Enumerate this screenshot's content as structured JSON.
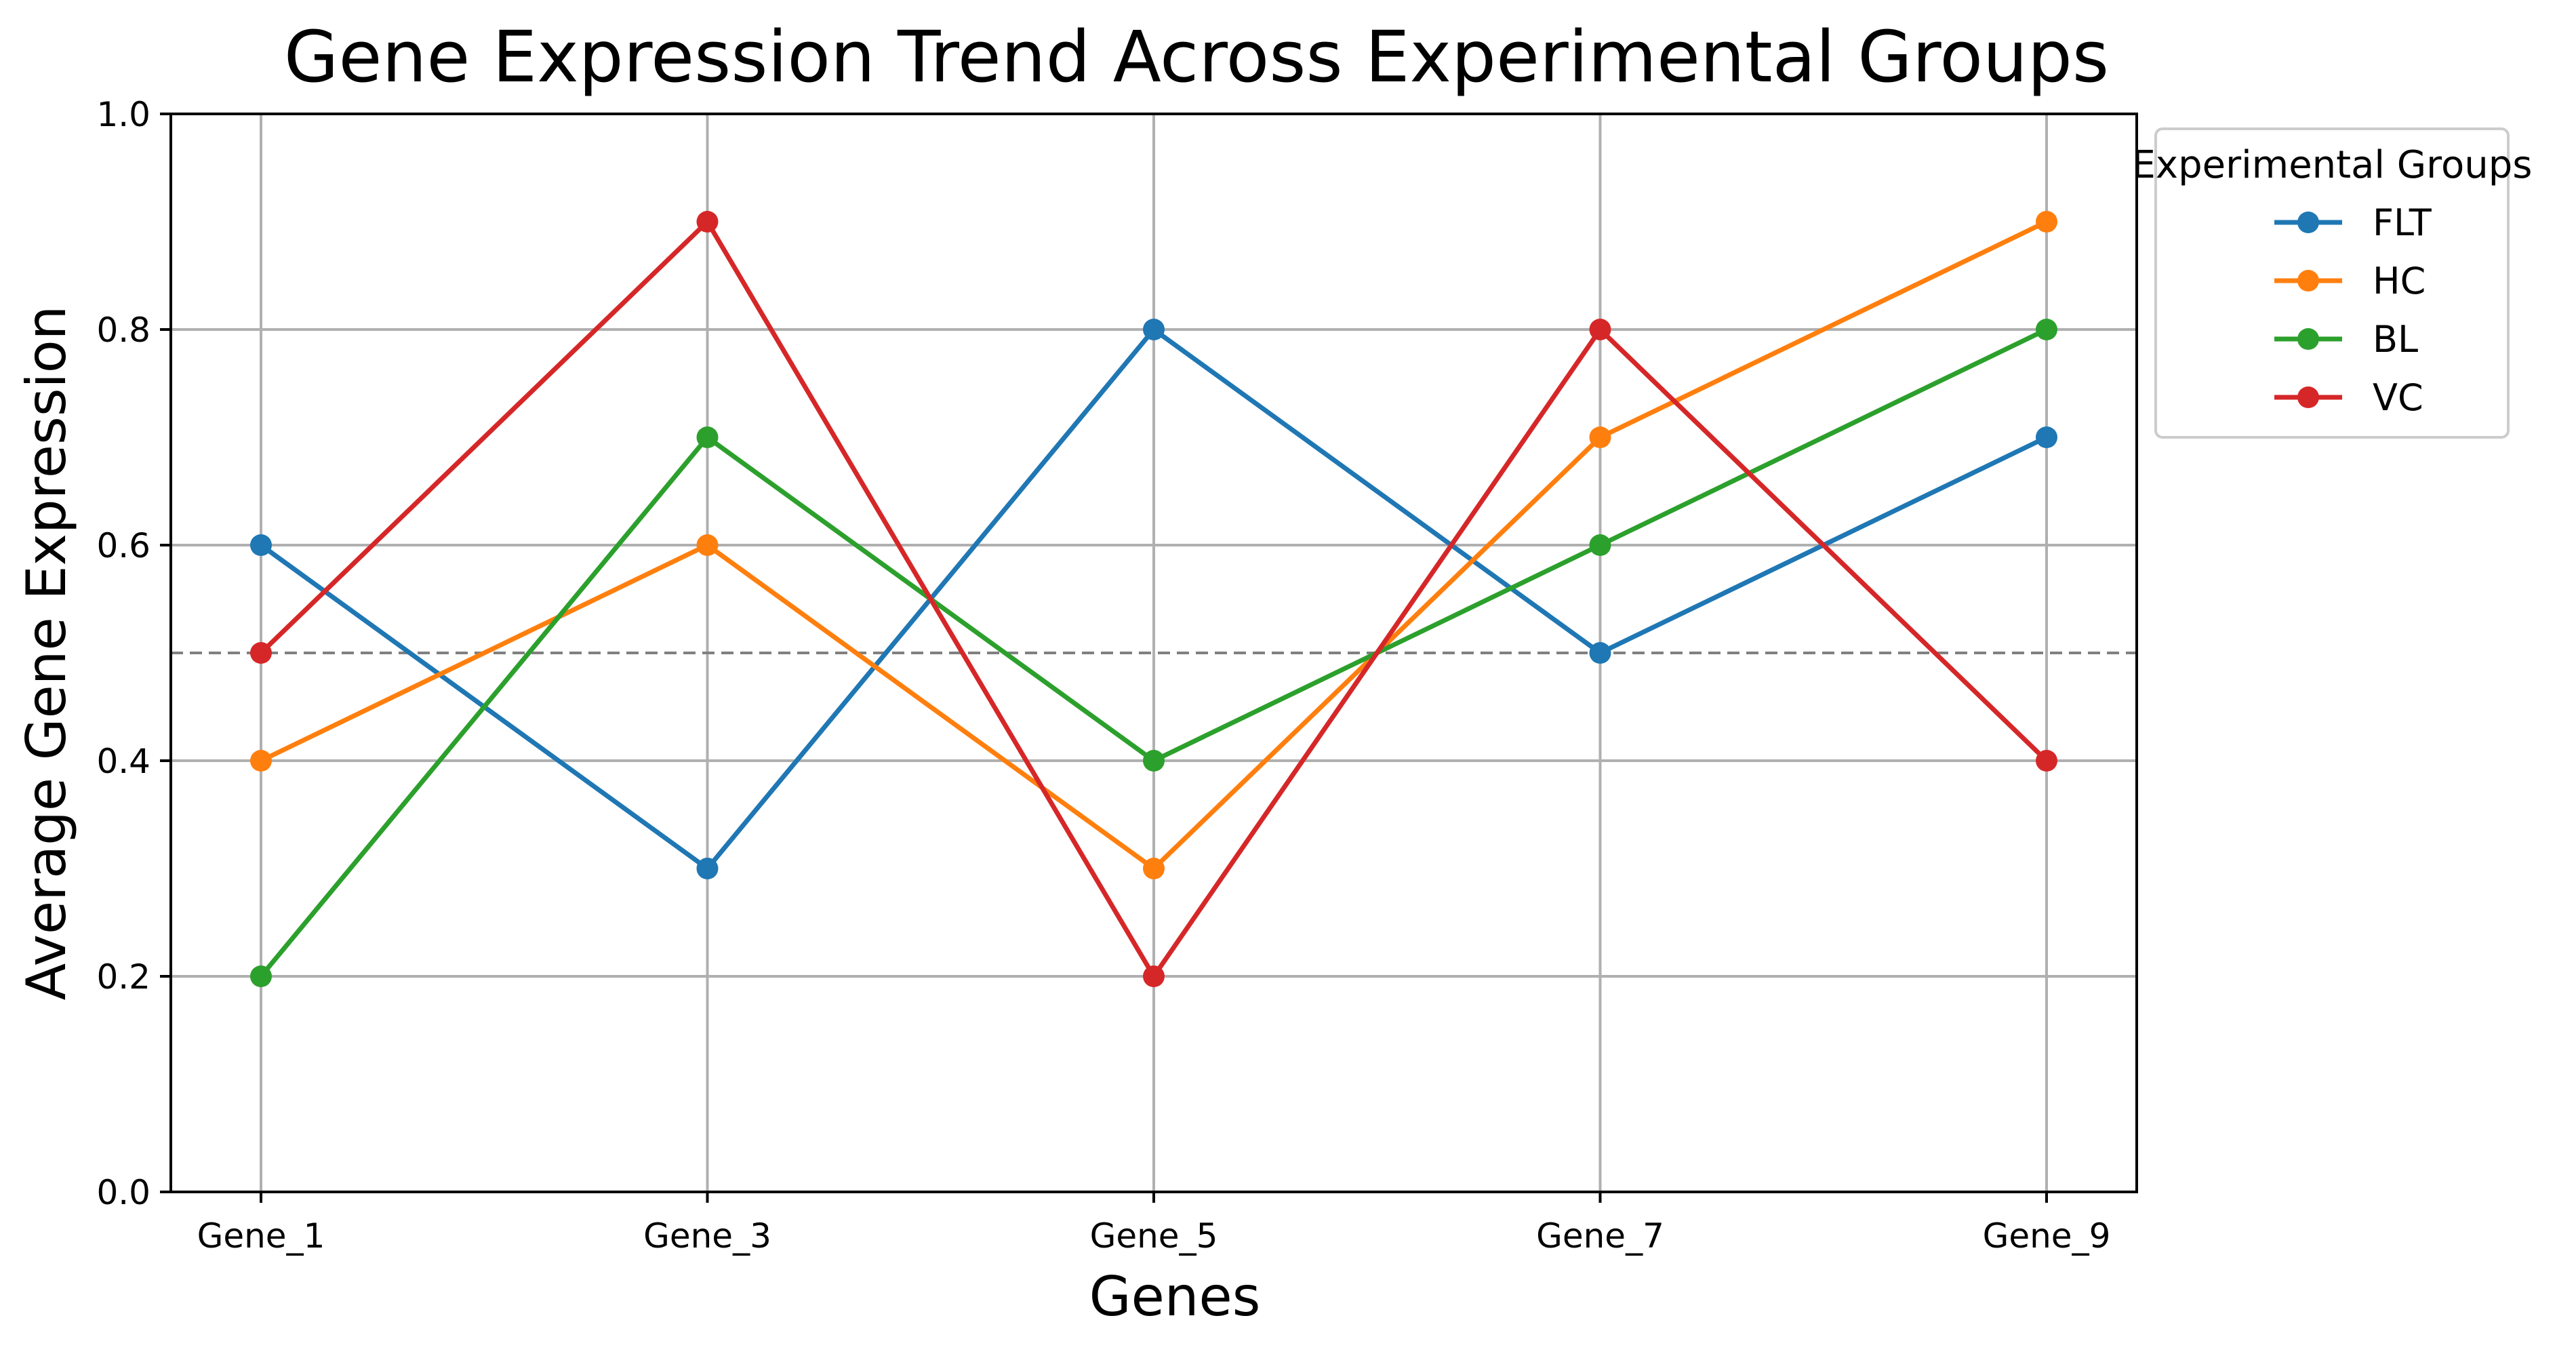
{
  "chart_data": {
    "type": "line",
    "title": "Gene Expression Trend Across Experimental Groups",
    "xlabel": "Genes",
    "ylabel": "Average Gene Expression",
    "categories": [
      "Gene_1",
      "Gene_3",
      "Gene_5",
      "Gene_7",
      "Gene_9"
    ],
    "ylim": [
      0.0,
      1.0
    ],
    "yticks": [
      "0.0",
      "0.2",
      "0.4",
      "0.6",
      "0.8",
      "1.0"
    ],
    "grid": true,
    "reference_line": {
      "y": 0.5,
      "style": "dashed",
      "color": "#808080"
    },
    "legend": {
      "title": "Experimental Groups",
      "placement": "outside-top-right"
    },
    "series": [
      {
        "name": "FLT",
        "color": "#1f77b4",
        "values": [
          0.6,
          0.3,
          0.8,
          0.5,
          0.7
        ]
      },
      {
        "name": "HC",
        "color": "#ff7f0e",
        "values": [
          0.4,
          0.6,
          0.3,
          0.7,
          0.9
        ]
      },
      {
        "name": "BL",
        "color": "#2ca02c",
        "values": [
          0.2,
          0.7,
          0.4,
          0.6,
          0.8
        ]
      },
      {
        "name": "VC",
        "color": "#d62728",
        "values": [
          0.5,
          0.9,
          0.2,
          0.8,
          0.4
        ]
      }
    ]
  }
}
